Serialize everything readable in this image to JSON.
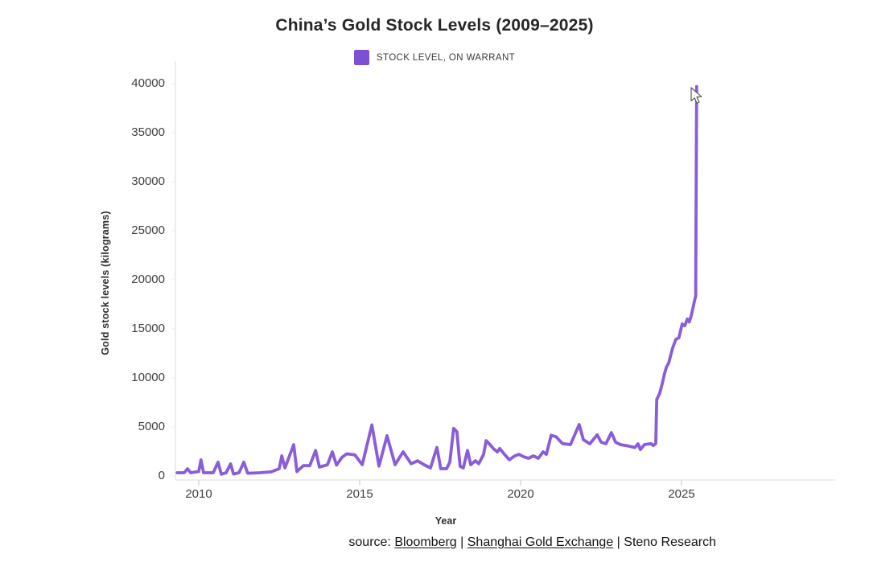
{
  "title": "China’s Gold Stock Levels (2009–2025)",
  "legend": {
    "label": "STOCK LEVEL, ON WARRANT",
    "swatch_color": "#7d4fd3"
  },
  "axes": {
    "y_label": "Gold stock levels (kilograms)",
    "x_label": "Year"
  },
  "source": {
    "prefix": "source: ",
    "link1": "Bloomberg",
    "sep1": " | ",
    "link2": "Shanghai Gold Exchange",
    "sep2": " | ",
    "suffix": "Steno Research"
  },
  "chart_data": {
    "type": "line",
    "title": "China’s Gold Stock Levels (2009–2025)",
    "xlabel": "Year",
    "ylabel": "Gold stock levels (kilograms)",
    "xlim": [
      2009.25,
      2026
    ],
    "ylim": [
      0,
      40000
    ],
    "x_ticks": [
      2010,
      2015,
      2020,
      2025
    ],
    "y_ticks": [
      0,
      5000,
      10000,
      15000,
      20000,
      25000,
      30000,
      35000,
      40000
    ],
    "grid": false,
    "legend_position": "top-center",
    "line_color": "#8b5cd8",
    "axis_color": "#e7e7e7",
    "series": [
      {
        "name": "STOCK LEVEL, ON WARRANT",
        "color": "#8b5cd8",
        "points": [
          [
            2009.33,
            330
          ],
          [
            2009.55,
            330
          ],
          [
            2009.65,
            740
          ],
          [
            2009.75,
            330
          ],
          [
            2010.0,
            450
          ],
          [
            2010.07,
            1640
          ],
          [
            2010.15,
            330
          ],
          [
            2010.45,
            330
          ],
          [
            2010.6,
            1400
          ],
          [
            2010.7,
            180
          ],
          [
            2010.85,
            330
          ],
          [
            2010.99,
            1230
          ],
          [
            2011.08,
            200
          ],
          [
            2011.25,
            330
          ],
          [
            2011.4,
            1400
          ],
          [
            2011.52,
            280
          ],
          [
            2011.9,
            330
          ],
          [
            2012.25,
            420
          ],
          [
            2012.5,
            740
          ],
          [
            2012.58,
            2050
          ],
          [
            2012.68,
            820
          ],
          [
            2012.95,
            3200
          ],
          [
            2013.05,
            450
          ],
          [
            2013.25,
            1050
          ],
          [
            2013.45,
            1050
          ],
          [
            2013.63,
            2600
          ],
          [
            2013.75,
            900
          ],
          [
            2014.0,
            1150
          ],
          [
            2014.15,
            2460
          ],
          [
            2014.28,
            1100
          ],
          [
            2014.45,
            1900
          ],
          [
            2014.6,
            2250
          ],
          [
            2014.85,
            2150
          ],
          [
            2015.08,
            1150
          ],
          [
            2015.38,
            5200
          ],
          [
            2015.6,
            1000
          ],
          [
            2015.85,
            4100
          ],
          [
            2016.1,
            1150
          ],
          [
            2016.35,
            2460
          ],
          [
            2016.6,
            1250
          ],
          [
            2016.8,
            1550
          ],
          [
            2017.0,
            1150
          ],
          [
            2017.2,
            820
          ],
          [
            2017.4,
            2900
          ],
          [
            2017.52,
            740
          ],
          [
            2017.7,
            740
          ],
          [
            2017.8,
            1400
          ],
          [
            2017.92,
            4850
          ],
          [
            2018.02,
            4500
          ],
          [
            2018.12,
            980
          ],
          [
            2018.22,
            820
          ],
          [
            2018.35,
            2600
          ],
          [
            2018.45,
            1150
          ],
          [
            2018.6,
            1550
          ],
          [
            2018.7,
            1250
          ],
          [
            2018.85,
            2200
          ],
          [
            2018.93,
            3600
          ],
          [
            2019.05,
            3200
          ],
          [
            2019.15,
            2800
          ],
          [
            2019.28,
            2450
          ],
          [
            2019.35,
            2800
          ],
          [
            2019.5,
            2200
          ],
          [
            2019.65,
            1650
          ],
          [
            2019.82,
            2050
          ],
          [
            2019.95,
            2200
          ],
          [
            2020.1,
            1950
          ],
          [
            2020.25,
            1800
          ],
          [
            2020.4,
            2050
          ],
          [
            2020.55,
            1800
          ],
          [
            2020.7,
            2460
          ],
          [
            2020.8,
            2200
          ],
          [
            2020.95,
            4150
          ],
          [
            2021.1,
            4000
          ],
          [
            2021.3,
            3300
          ],
          [
            2021.55,
            3200
          ],
          [
            2021.82,
            5250
          ],
          [
            2021.95,
            3700
          ],
          [
            2022.15,
            3280
          ],
          [
            2022.38,
            4200
          ],
          [
            2022.5,
            3450
          ],
          [
            2022.65,
            3280
          ],
          [
            2022.82,
            4420
          ],
          [
            2022.95,
            3450
          ],
          [
            2023.1,
            3200
          ],
          [
            2023.35,
            3050
          ],
          [
            2023.55,
            2900
          ],
          [
            2023.65,
            3280
          ],
          [
            2023.72,
            2700
          ],
          [
            2023.85,
            3200
          ],
          [
            2024.05,
            3300
          ],
          [
            2024.12,
            3100
          ],
          [
            2024.2,
            3300
          ],
          [
            2024.23,
            7800
          ],
          [
            2024.32,
            8400
          ],
          [
            2024.4,
            9400
          ],
          [
            2024.47,
            10400
          ],
          [
            2024.53,
            11100
          ],
          [
            2024.6,
            11500
          ],
          [
            2024.72,
            13000
          ],
          [
            2024.82,
            13900
          ],
          [
            2024.92,
            14100
          ],
          [
            2025.02,
            15500
          ],
          [
            2025.1,
            15300
          ],
          [
            2025.18,
            16000
          ],
          [
            2025.24,
            15700
          ],
          [
            2025.3,
            16300
          ],
          [
            2025.38,
            17500
          ],
          [
            2025.44,
            18350
          ],
          [
            2025.47,
            39700
          ]
        ]
      }
    ],
    "source_text": "source: Bloomberg | Shanghai Gold Exchange | Steno Research"
  }
}
